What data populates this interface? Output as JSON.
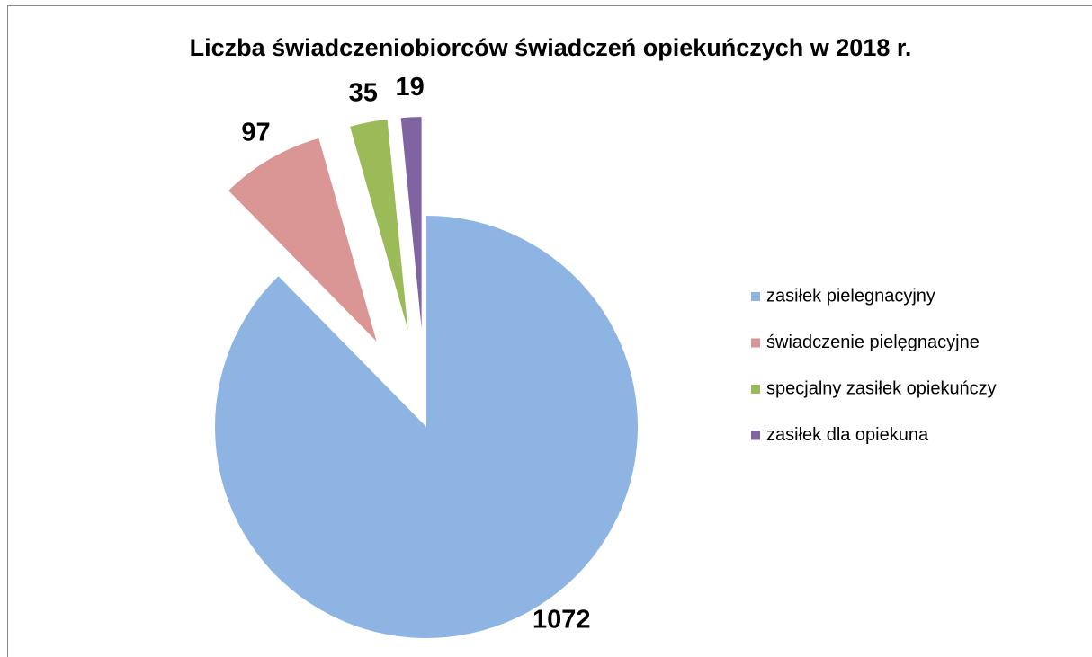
{
  "chart_data": {
    "type": "pie",
    "title": "Liczba świadczeniobiorców świadczeń opiekuńczych w 2018 r.",
    "categories": [
      "zasiłek pielegnacyjny",
      "świadczenie pielęgnacyjne",
      "specjalny zasiłek opiekuńczy",
      "zasiłek dla opiekuna"
    ],
    "values": [
      1072,
      97,
      35,
      19
    ],
    "colors": [
      "#8eb4e3",
      "#d99694",
      "#9bbb59",
      "#8064a2"
    ],
    "legend": "right"
  }
}
